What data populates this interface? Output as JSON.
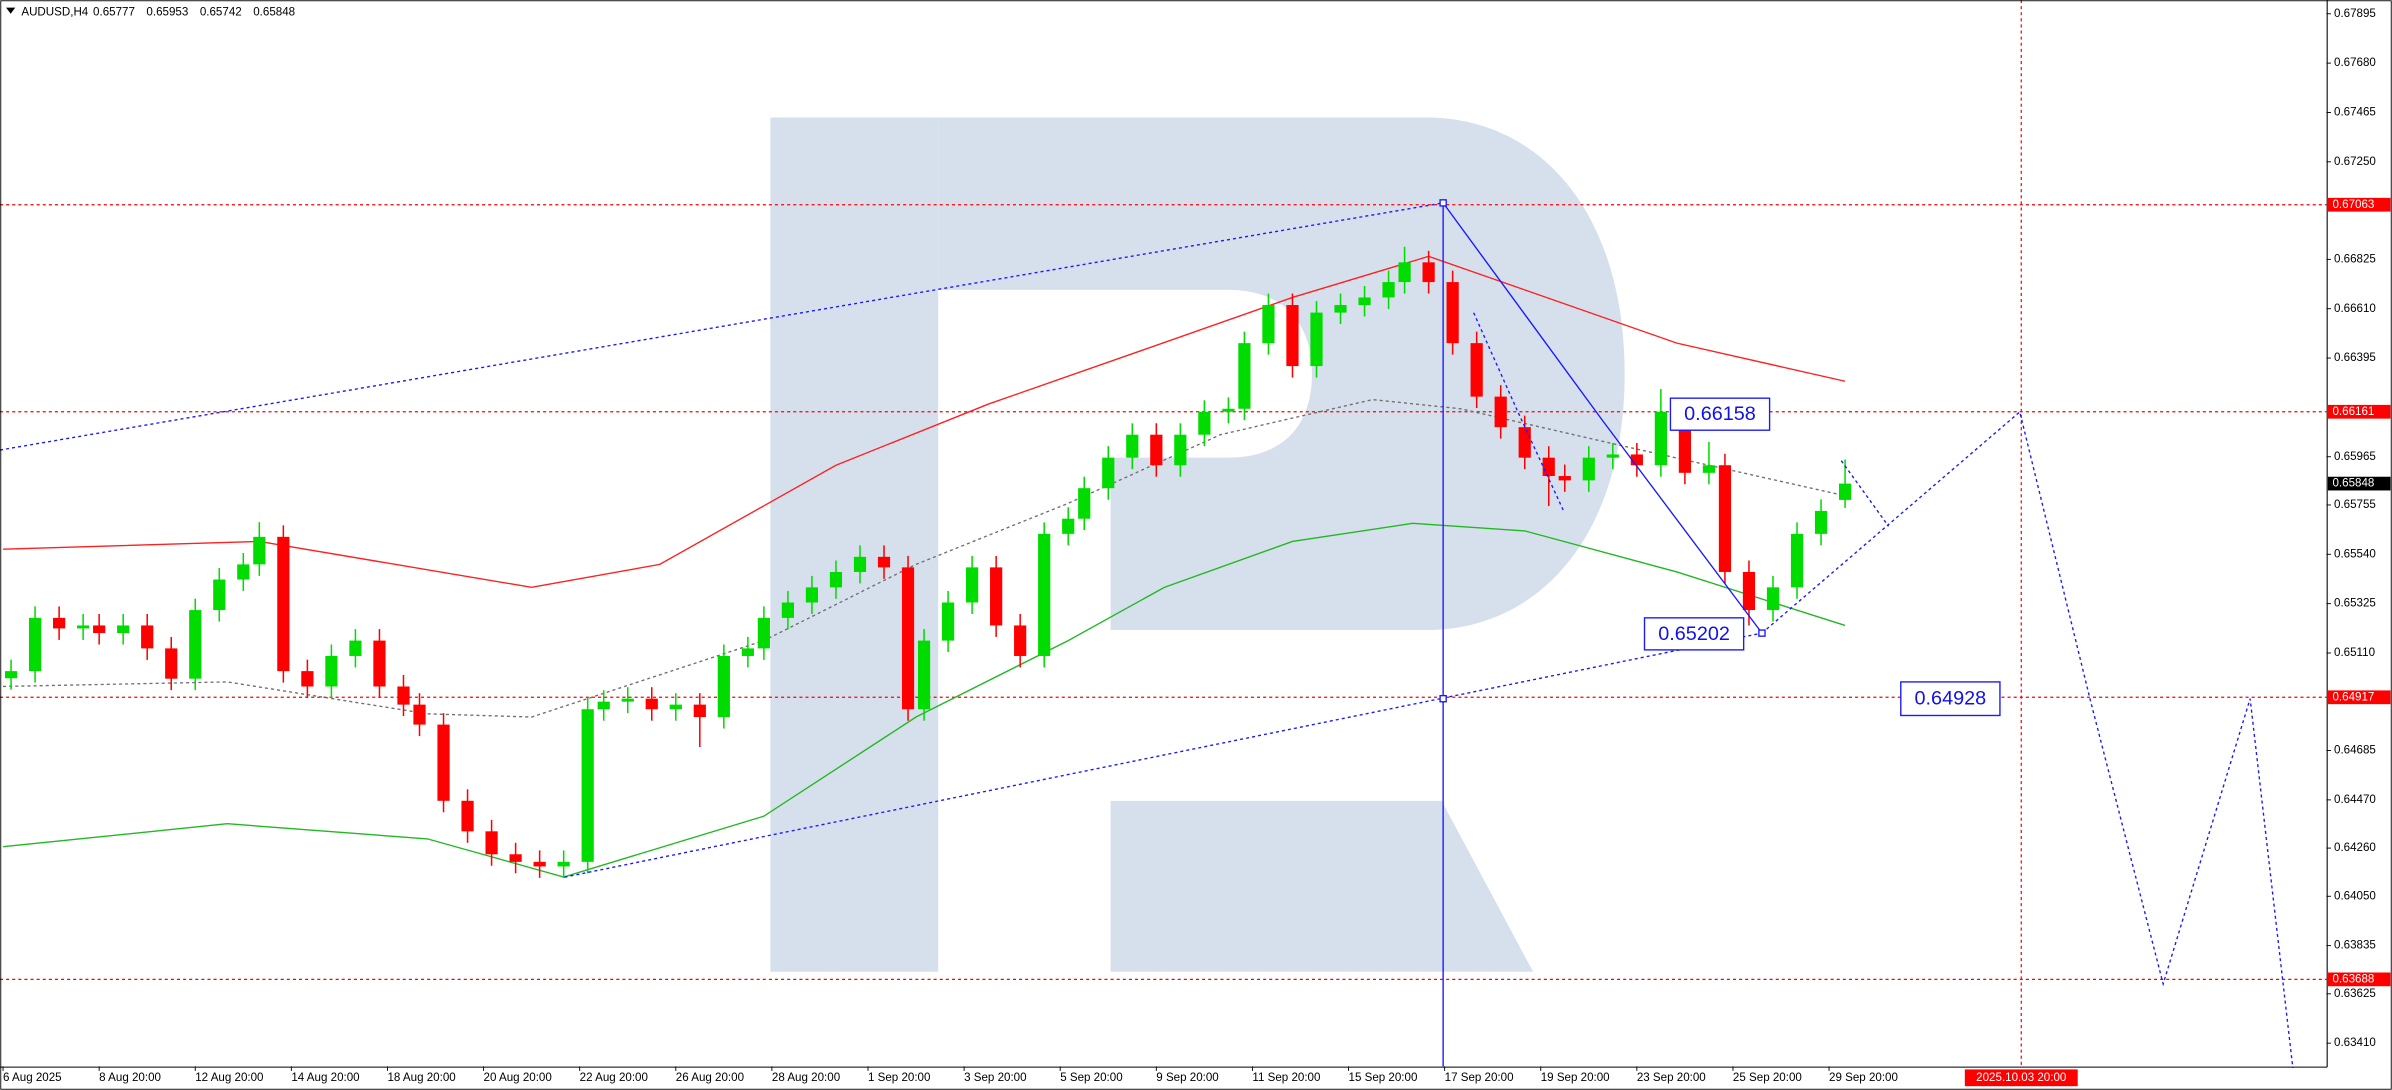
{
  "chart_data": {
    "type": "candlestick",
    "symbol": "AUDUSD,H4",
    "colors": {
      "up": "#00dc00",
      "down": "#ff0000",
      "level": "#ff0000"
    },
    "x": [
      1,
      4,
      7,
      10,
      12,
      15,
      18,
      21,
      24,
      27,
      30,
      32,
      35,
      38,
      41,
      44,
      47,
      50,
      52,
      55,
      58,
      61,
      64,
      67,
      70,
      73,
      75,
      78,
      81,
      84,
      87,
      90,
      93,
      95,
      98,
      101,
      104,
      107,
      110,
      113,
      115,
      118,
      121,
      124,
      127,
      130,
      133,
      135,
      138,
      141,
      144,
      147,
      150,
      153,
      155,
      158,
      161,
      164,
      167,
      170,
      173,
      175,
      178,
      181,
      184,
      187,
      190,
      193,
      195,
      198,
      201,
      204,
      207,
      210,
      213,
      215,
      218,
      221,
      224,
      227,
      230
    ],
    "open": [
      0.65,
      0.65031,
      0.65263,
      0.65217,
      0.6523,
      0.65197,
      0.6523,
      0.6513,
      0.64998,
      0.65297,
      0.6543,
      0.65496,
      0.65616,
      0.65031,
      0.64964,
      0.65097,
      0.65164,
      0.64964,
      0.64885,
      0.64798,
      0.64466,
      0.64333,
      0.64233,
      0.642,
      0.6418,
      0.642,
      0.64865,
      0.64898,
      0.64911,
      0.64865,
      0.64885,
      0.64831,
      0.65097,
      0.6513,
      0.65263,
      0.6533,
      0.65396,
      0.65463,
      0.65529,
      0.65483,
      0.64865,
      0.65164,
      0.6533,
      0.65483,
      0.6523,
      0.65097,
      0.65629,
      0.65695,
      0.65828,
      0.65961,
      0.66061,
      0.65928,
      0.66061,
      0.66161,
      0.66174,
      0.6646,
      0.66626,
      0.6636,
      0.66593,
      0.66626,
      0.66659,
      0.66726,
      0.66812,
      0.66726,
      0.6646,
      0.66227,
      0.66094,
      0.65961,
      0.65881,
      0.65862,
      0.65961,
      0.65975,
      0.65928,
      0.66161,
      0.65895,
      0.65928,
      0.65463,
      0.65297,
      0.65396,
      0.65629,
      0.65777
    ],
    "high": [
      0.65081,
      0.65313,
      0.65313,
      0.6528,
      0.6528,
      0.6528,
      0.6528,
      0.6518,
      0.65347,
      0.6548,
      0.65546,
      0.6568,
      0.65666,
      0.65081,
      0.65147,
      0.65214,
      0.65214,
      0.65014,
      0.64935,
      0.64848,
      0.64516,
      0.64383,
      0.64283,
      0.6425,
      0.6425,
      0.64915,
      0.64948,
      0.64961,
      0.64961,
      0.64935,
      0.64935,
      0.65147,
      0.6518,
      0.65313,
      0.6538,
      0.65446,
      0.65513,
      0.65579,
      0.65579,
      0.65533,
      0.65214,
      0.6538,
      0.65533,
      0.65533,
      0.6528,
      0.65679,
      0.65745,
      0.65878,
      0.66011,
      0.66111,
      0.66111,
      0.66111,
      0.66211,
      0.66224,
      0.6651,
      0.66676,
      0.66676,
      0.66643,
      0.66676,
      0.66709,
      0.66776,
      0.6688,
      0.66862,
      0.66776,
      0.6651,
      0.66277,
      0.66144,
      0.66011,
      0.65931,
      0.66011,
      0.66025,
      0.66025,
      0.6626,
      0.66211,
      0.6603,
      0.65978,
      0.65513,
      0.65446,
      0.65679,
      0.65779,
      0.65953
    ],
    "low": [
      0.6495,
      0.64981,
      0.65167,
      0.65167,
      0.65147,
      0.65147,
      0.6508,
      0.64948,
      0.64948,
      0.65247,
      0.6538,
      0.65446,
      0.64981,
      0.64914,
      0.64914,
      0.65047,
      0.64914,
      0.64835,
      0.64748,
      0.64416,
      0.64283,
      0.64183,
      0.6415,
      0.6413,
      0.6413,
      0.6415,
      0.64815,
      0.64848,
      0.64815,
      0.64815,
      0.647,
      0.64781,
      0.65047,
      0.6508,
      0.65213,
      0.6528,
      0.65346,
      0.65413,
      0.65433,
      0.64815,
      0.64815,
      0.65114,
      0.6528,
      0.6518,
      0.65047,
      0.65047,
      0.65579,
      0.65645,
      0.65778,
      0.65911,
      0.65878,
      0.65878,
      0.66011,
      0.66111,
      0.66124,
      0.6641,
      0.6631,
      0.6631,
      0.66543,
      0.66576,
      0.66609,
      0.66676,
      0.66676,
      0.6641,
      0.66177,
      0.66044,
      0.65911,
      0.6575,
      0.65812,
      0.65812,
      0.65911,
      0.65878,
      0.65878,
      0.65845,
      0.65845,
      0.65413,
      0.6523,
      0.65247,
      0.65346,
      0.65579,
      0.65742
    ],
    "close": [
      0.65031,
      0.65263,
      0.65217,
      0.6523,
      0.65197,
      0.6523,
      0.6513,
      0.64998,
      0.65297,
      0.6543,
      0.65496,
      0.65616,
      0.65031,
      0.64964,
      0.65097,
      0.65164,
      0.64964,
      0.64885,
      0.64798,
      0.64466,
      0.64333,
      0.64233,
      0.642,
      0.6418,
      0.642,
      0.64865,
      0.64898,
      0.64911,
      0.64865,
      0.64885,
      0.64831,
      0.65097,
      0.6513,
      0.65263,
      0.6533,
      0.65396,
      0.65463,
      0.65529,
      0.65483,
      0.64865,
      0.65164,
      0.6533,
      0.65483,
      0.6523,
      0.65097,
      0.65629,
      0.65695,
      0.65828,
      0.65961,
      0.66061,
      0.65928,
      0.66061,
      0.66161,
      0.66174,
      0.6646,
      0.66626,
      0.6636,
      0.66593,
      0.66626,
      0.66659,
      0.66726,
      0.66812,
      0.66726,
      0.6646,
      0.66227,
      0.66094,
      0.65961,
      0.65881,
      0.65862,
      0.65961,
      0.65975,
      0.65928,
      0.66161,
      0.65895,
      0.65928,
      0.65463,
      0.65297,
      0.65396,
      0.65629,
      0.65729,
      0.65848
    ],
    "indicators": [
      {
        "color": "#ff2020",
        "dash": false,
        "x": [
          0,
          32,
          66,
          82,
          104,
          123,
          142,
          161,
          178,
          190,
          209,
          230
        ],
        "values": [
          0.65562,
          0.65596,
          0.65396,
          0.65496,
          0.65928,
          0.66194,
          0.66426,
          0.66659,
          0.66838,
          0.66692,
          0.6646,
          0.66294
        ]
      },
      {
        "color": "#22b822",
        "dash": false,
        "x": [
          0,
          28,
          53,
          70,
          95,
          114,
          133,
          145,
          161,
          176,
          190,
          209,
          230
        ],
        "values": [
          0.64266,
          0.64366,
          0.643,
          0.64134,
          0.64399,
          0.64831,
          0.65164,
          0.65396,
          0.65596,
          0.65675,
          0.65642,
          0.65463,
          0.6523
        ]
      },
      {
        "color": "#707070",
        "dash": true,
        "x": [
          0,
          28,
          53,
          66,
          95,
          114,
          133,
          152,
          171,
          182,
          202,
          230
        ],
        "values": [
          0.64964,
          0.64984,
          0.64845,
          0.64831,
          0.65164,
          0.65496,
          0.65762,
          0.66061,
          0.66214,
          0.66174,
          0.66014,
          0.65795
        ]
      }
    ],
    "levels": [
      0.67063,
      0.66161,
      0.64917,
      0.63688
    ],
    "annotations": [
      0.66158,
      0.65202,
      0.64928
    ],
    "vline": {
      "value": 252,
      "label": "2025.10.03 20:00"
    },
    "xlim": [
      -0.38,
      290.1
    ],
    "ylim": [
      0.63309,
      0.67955
    ],
    "xticks": [
      {
        "value": 0,
        "label": "6 Aug 2025"
      },
      {
        "value": 12,
        "label": "8 Aug 20:00"
      },
      {
        "value": 24,
        "label": "12 Aug 20:00"
      },
      {
        "value": 36,
        "label": "14 Aug 20:00"
      },
      {
        "value": 48,
        "label": "18 Aug 20:00"
      },
      {
        "value": 60,
        "label": "20 Aug 20:00"
      },
      {
        "value": 72,
        "label": "22 Aug 20:00"
      },
      {
        "value": 84,
        "label": "26 Aug 20:00"
      },
      {
        "value": 96,
        "label": "28 Aug 20:00"
      },
      {
        "value": 108,
        "label": "1 Sep 20:00"
      },
      {
        "value": 120,
        "label": "3 Sep 20:00"
      },
      {
        "value": 132,
        "label": "5 Sep 20:00"
      },
      {
        "value": 144,
        "label": "9 Sep 20:00"
      },
      {
        "value": 156,
        "label": "11 Sep 20:00"
      },
      {
        "value": 168,
        "label": "15 Sep 20:00"
      },
      {
        "value": 180,
        "label": "17 Sep 20:00"
      },
      {
        "value": 192,
        "label": "19 Sep 20:00"
      },
      {
        "value": 204,
        "label": "23 Sep 20:00"
      },
      {
        "value": 216,
        "label": "25 Sep 20:00"
      },
      {
        "value": 228,
        "label": "29 Sep 20:00"
      }
    ],
    "yticks": [
      0.67895,
      {
        "value": 0.6768,
        "label": "0.67680"
      },
      0.67465,
      {
        "value": 0.6725,
        "label": "0.67250"
      },
      0.66825,
      {
        "value": 0.6661,
        "label": "0.66610"
      },
      0.66395,
      0.65965,
      0.65755,
      {
        "value": 0.6554,
        "label": "0.65540"
      },
      0.65325,
      {
        "value": 0.6511,
        "label": "0.65110"
      },
      0.64685,
      {
        "value": 0.6447,
        "label": "0.64470"
      },
      {
        "value": 0.6426,
        "label": "0.64260"
      },
      {
        "value": 0.6405,
        "label": "0.64050"
      },
      0.63835,
      0.63625,
      {
        "value": 0.6341,
        "label": "0.63410"
      }
    ]
  }
}
